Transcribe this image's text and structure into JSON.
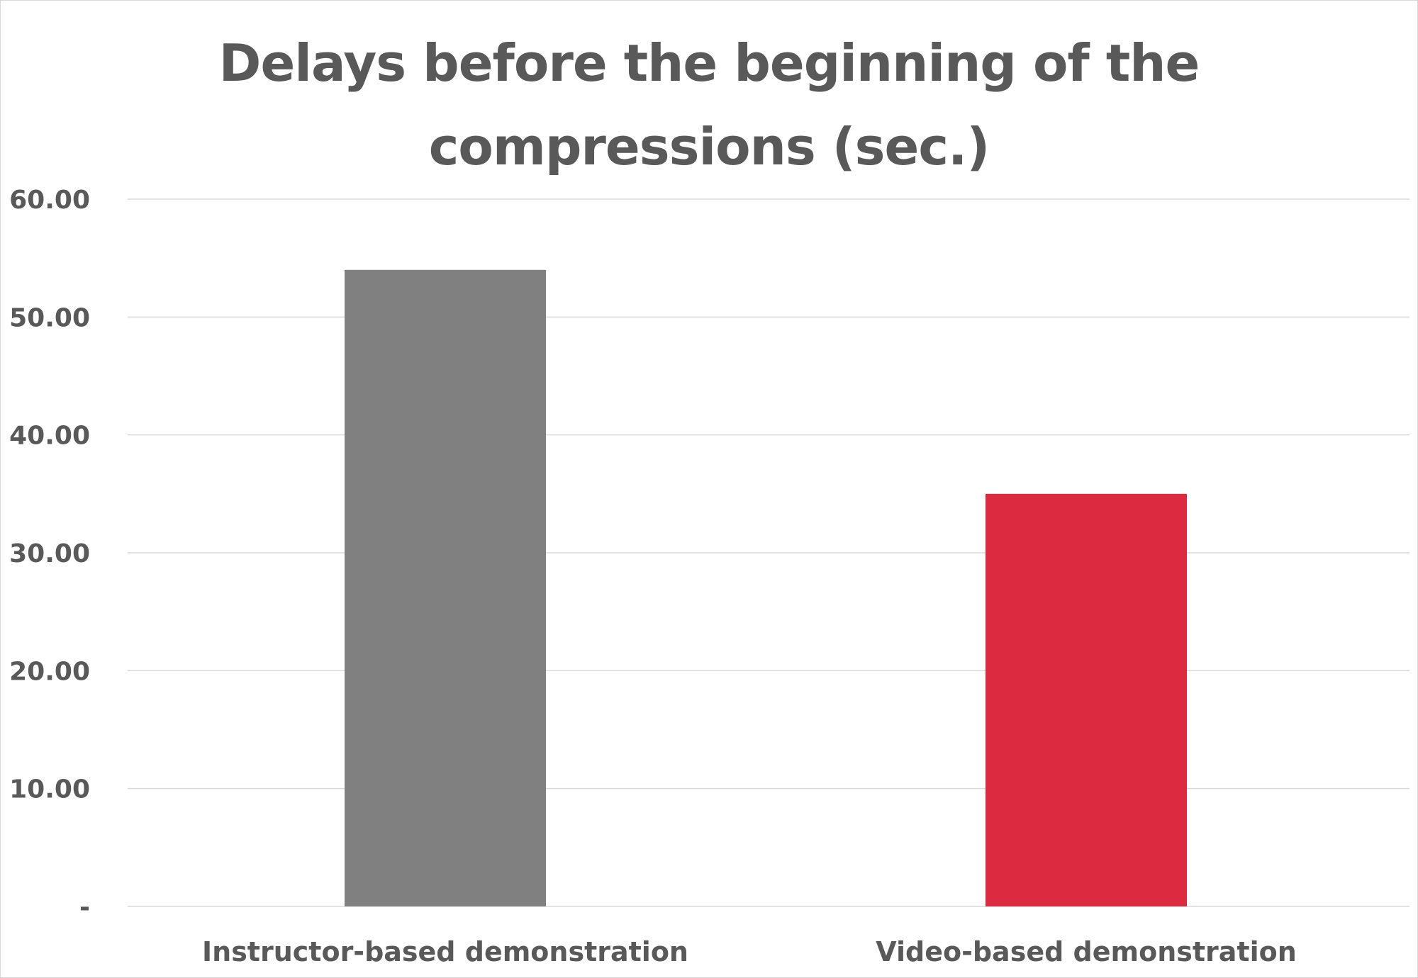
{
  "chart_data": {
    "type": "bar",
    "title_lines": [
      "Delays before the beginning of the",
      "compressions (sec.)"
    ],
    "categories": [
      "Instructor-based demonstration",
      "Video-based demonstration"
    ],
    "values": [
      54.0,
      35.0
    ],
    "bar_colors": [
      "#808080",
      "#dc2b40"
    ],
    "ylim": [
      0,
      60
    ],
    "yticks": [
      0,
      10,
      20,
      30,
      40,
      50,
      60
    ],
    "ytick_labels": [
      "-",
      "10.00",
      "20.00",
      "30.00",
      "40.00",
      "50.00",
      "60.00"
    ],
    "grid": true,
    "legend": "none",
    "xlabel": "",
    "ylabel": ""
  }
}
